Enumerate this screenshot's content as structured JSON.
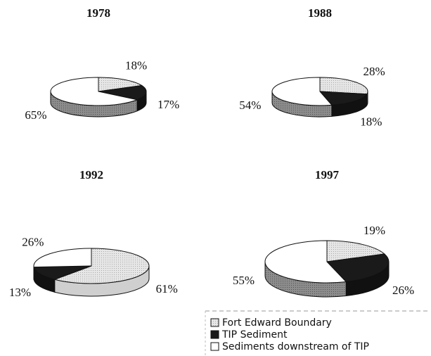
{
  "chart_data": [
    {
      "type": "pie",
      "title": "1978",
      "values": [
        18,
        17,
        65
      ],
      "value_labels": [
        "18%",
        "17%",
        "65%"
      ]
    },
    {
      "type": "pie",
      "title": "1988",
      "values": [
        28,
        18,
        54
      ],
      "value_labels": [
        "28%",
        "18%",
        "54%"
      ]
    },
    {
      "type": "pie",
      "title": "1992",
      "values": [
        61,
        13,
        26
      ],
      "value_labels": [
        "61%",
        "13%",
        "26%"
      ]
    },
    {
      "type": "pie",
      "title": "1997",
      "values": [
        19,
        26,
        55
      ],
      "value_labels": [
        "19%",
        "26%",
        "55%"
      ]
    }
  ],
  "legend": {
    "labels": [
      "Fort Edward Boundary",
      "TIP Sediment",
      "Sediments downstream of TIP"
    ],
    "colors": [
      "#e6e6e6",
      "#1a1a1a",
      "#ffffff"
    ]
  }
}
